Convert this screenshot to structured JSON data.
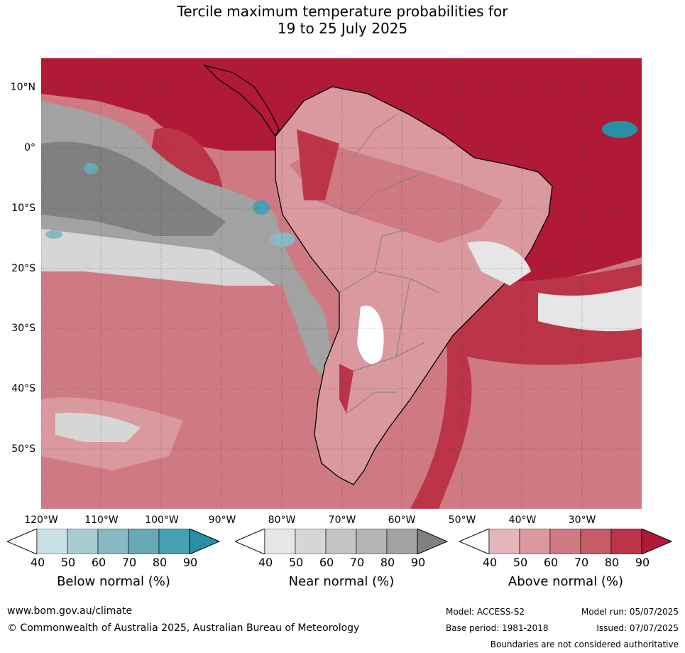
{
  "title": {
    "line1": "Tercile maximum temperature probabilities for",
    "line2": "19 to 25 July 2025"
  },
  "axes": {
    "lat_labels": [
      "10°N",
      "0°",
      "10°S",
      "20°S",
      "30°S",
      "40°S",
      "50°S"
    ],
    "lon_labels": [
      "120°W",
      "110°W",
      "100°W",
      "90°W",
      "80°W",
      "70°W",
      "60°W",
      "50°W",
      "40°W",
      "30°W"
    ]
  },
  "colorbars": [
    {
      "title": "Below normal (%)",
      "ticks": [
        "40",
        "50",
        "60",
        "70",
        "80",
        "90"
      ],
      "colors": [
        "#ffffff",
        "#c9e1e6",
        "#a6cbd2",
        "#88b8c3",
        "#69a8b6",
        "#47a0b2",
        "#2a8fa2"
      ]
    },
    {
      "title": "Near normal (%)",
      "ticks": [
        "40",
        "50",
        "60",
        "70",
        "80",
        "90"
      ],
      "colors": [
        "#ffffff",
        "#e6e6e6",
        "#d6d6d6",
        "#c4c4c4",
        "#b4b4b4",
        "#a2a2a2",
        "#808080"
      ]
    },
    {
      "title": "Above normal (%)",
      "ticks": [
        "40",
        "50",
        "60",
        "70",
        "80",
        "90"
      ],
      "colors": [
        "#ffffff",
        "#e3b5bb",
        "#d9999f",
        "#cf7a83",
        "#c65c67",
        "#bb3448",
        "#b11a37"
      ]
    }
  ],
  "footer": {
    "website": "www.bom.gov.au/climate",
    "copyright": "© Commonwealth of Australia 2025, Australian Bureau of Meteorology",
    "model": "Model: ACCESS-S2",
    "base_period": "Base period: 1981-2018",
    "model_run": "Model run: 05/07/2025",
    "issued": "Issued: 07/07/2025",
    "disclaimer": "Boundaries are not considered authoritative"
  }
}
